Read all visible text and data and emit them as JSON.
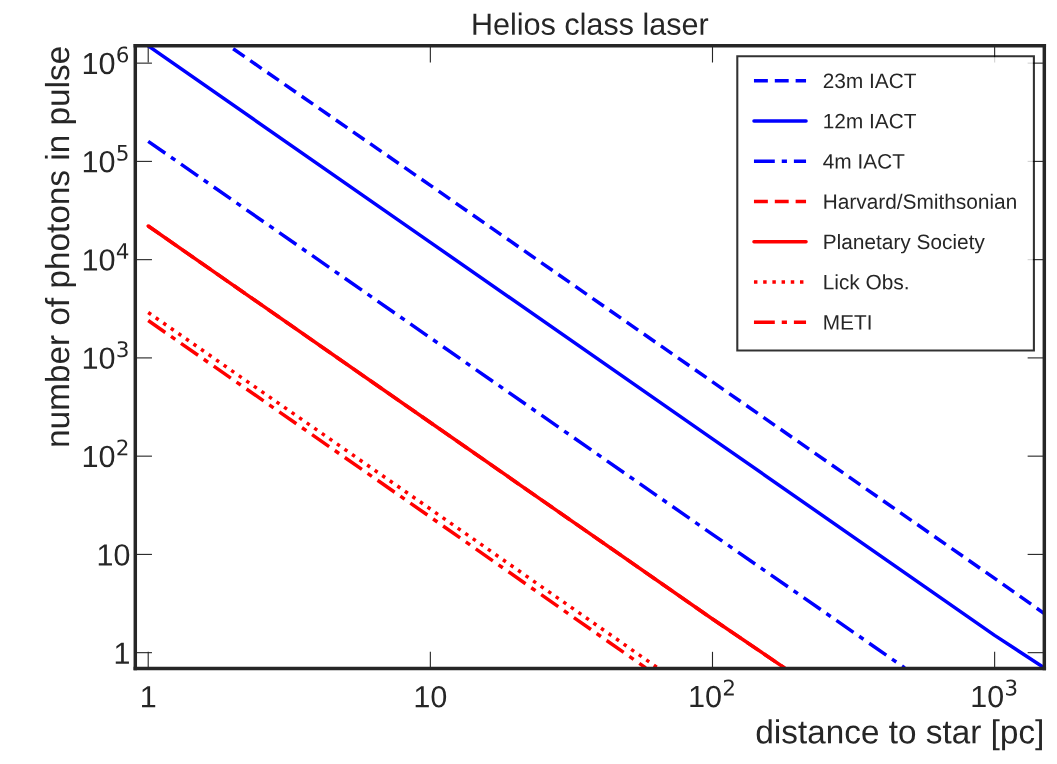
{
  "chart_data": {
    "type": "line",
    "title": "Helios class laser",
    "xlabel": "distance to star [pc]",
    "ylabel": "number of photons in pulse",
    "log": "xy",
    "xlim": [
      0.9,
      1500
    ],
    "ylim": [
      0.69,
      1500000
    ],
    "xticks": [
      1,
      10,
      {
        "value": 100,
        "label": "10$^{2}$"
      },
      {
        "value": 1000,
        "label": "10$^{3}$"
      }
    ],
    "yticks": [
      1,
      10,
      {
        "value": 100,
        "label": "10$^{2}$"
      },
      {
        "value": 1000,
        "label": "10$^{3}$"
      },
      {
        "value": 10000,
        "label": "10$^{4}$"
      },
      {
        "value": 100000,
        "label": "10$^{5}$"
      },
      {
        "value": 1000000,
        "label": "10$^{6}$"
      }
    ],
    "grid": false,
    "legend": "top right",
    "marker": "none",
    "series": [
      {
        "name": "23m IACT",
        "color": "#0000ff",
        "line_style": "dashed",
        "x": [
          2,
          10,
          100,
          1000,
          1500
        ],
        "values": [
          1400000,
          57000,
          570,
          5.7,
          2.5
        ]
      },
      {
        "name": "12m IACT",
        "color": "#0000ff",
        "line_style": "solid",
        "x": [
          1,
          10,
          100,
          1000,
          1500
        ],
        "values": [
          1500000,
          15000,
          150,
          1.5,
          0.7
        ]
      },
      {
        "name": "4m IACT",
        "color": "#0000ff",
        "line_style": "dashdot",
        "x": [
          1,
          10,
          100,
          480
        ],
        "values": [
          160000,
          1600,
          16,
          0.7
        ]
      },
      {
        "name": "Harvard/Smithsonian",
        "color": "#ff0000",
        "line_style": "dashed",
        "x": [
          1,
          10,
          100,
          180
        ],
        "values": [
          22000,
          220,
          2.2,
          0.7
        ]
      },
      {
        "name": "Planetary Society",
        "color": "#ff0000",
        "line_style": "solid",
        "x": [
          1,
          10,
          100,
          180
        ],
        "values": [
          22000,
          220,
          2.2,
          0.7
        ]
      },
      {
        "name": "Lick Obs.",
        "color": "#ff0000",
        "line_style": "dotted",
        "x": [
          1,
          10,
          64
        ],
        "values": [
          2900,
          29,
          0.7
        ]
      },
      {
        "name": "METI",
        "color": "#ff0000",
        "line_style": "dashdot",
        "x": [
          1,
          10,
          58
        ],
        "values": [
          2400,
          24,
          0.7
        ]
      }
    ]
  }
}
